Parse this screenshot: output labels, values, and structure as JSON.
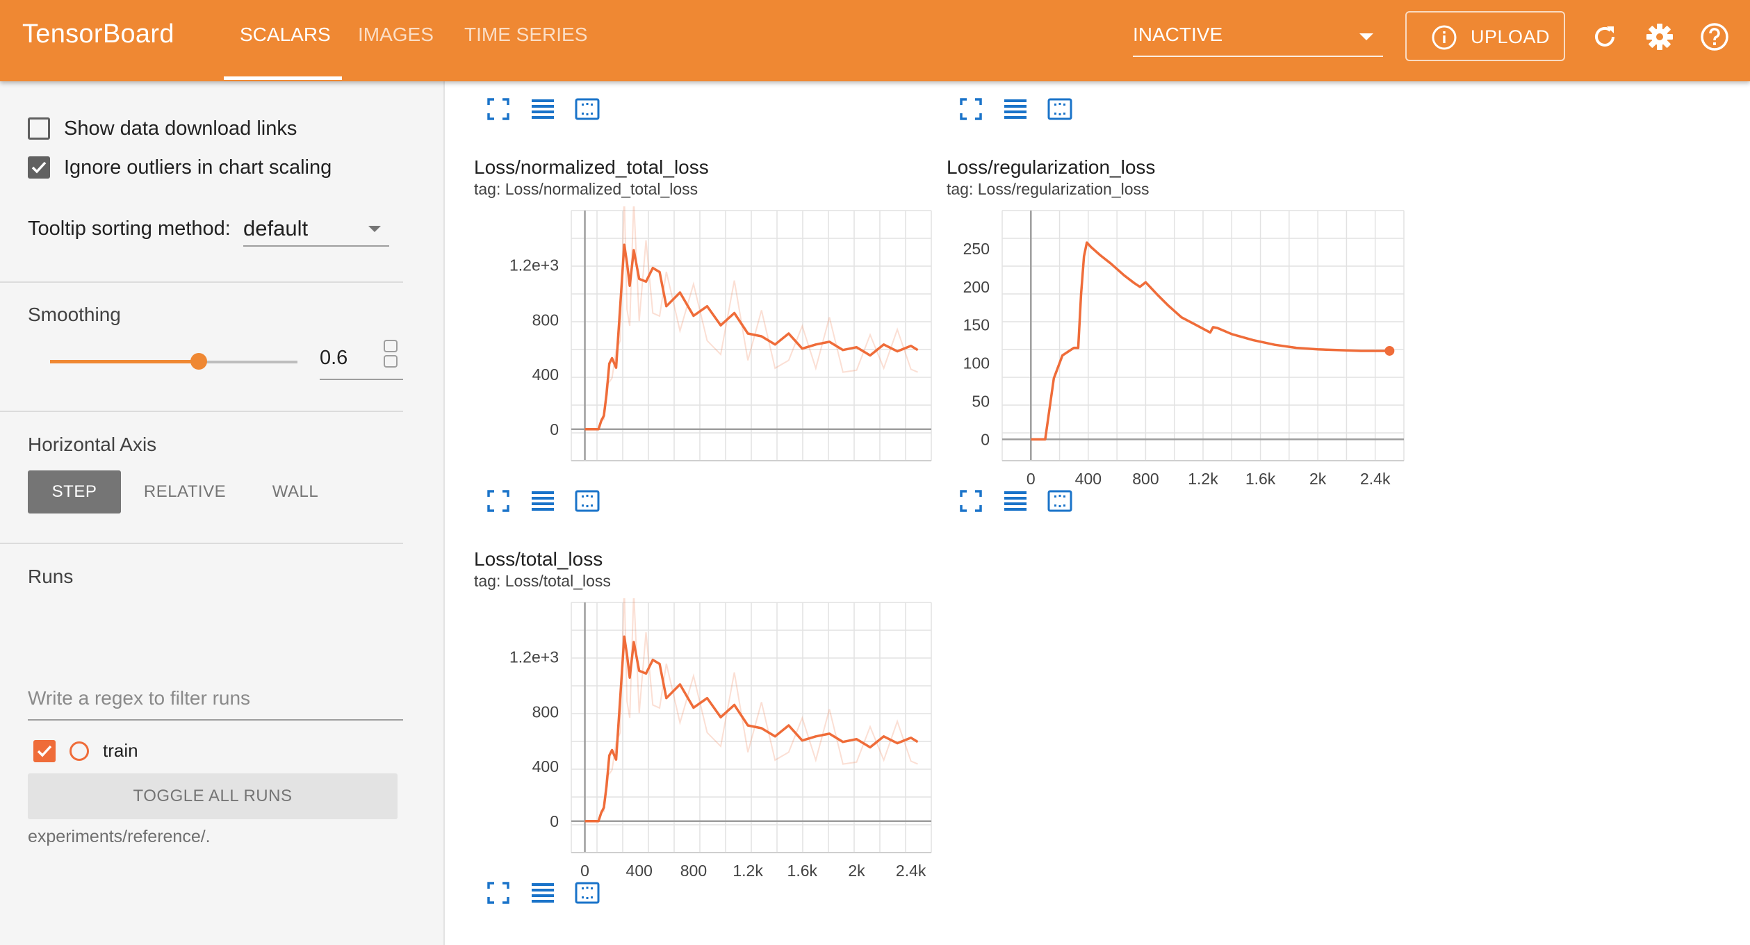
{
  "app": {
    "brand": "TensorBoard",
    "tabs": [
      {
        "label": "SCALARS",
        "active": true
      },
      {
        "label": "IMAGES",
        "active": false
      },
      {
        "label": "TIME SERIES",
        "active": false
      }
    ],
    "run_status": "INACTIVE",
    "upload_label": "UPLOAD",
    "accent_color": "#ef8833",
    "icons": [
      "refresh-icon",
      "settings-gear-icon",
      "help-icon",
      "info-icon"
    ]
  },
  "sidebar": {
    "show_download_links": {
      "label": "Show data download links",
      "checked": false
    },
    "ignore_outliers": {
      "label": "Ignore outliers in chart scaling",
      "checked": true
    },
    "tooltip_sorting": {
      "label": "Tooltip sorting method:",
      "value": "default"
    },
    "smoothing": {
      "label": "Smoothing",
      "value": "0.6",
      "fraction": 0.6
    },
    "horizontal_axis": {
      "label": "Horizontal Axis",
      "options": [
        "STEP",
        "RELATIVE",
        "WALL"
      ],
      "selected": "STEP"
    },
    "runs": {
      "label": "Runs",
      "filter_placeholder": "Write a regex to filter runs",
      "items": [
        {
          "name": "train",
          "checked": true,
          "color": "#ef6c39"
        }
      ],
      "toggle_all_label": "TOGGLE ALL RUNS",
      "logdir": "experiments/reference/."
    }
  },
  "chart_data": [
    {
      "type": "line",
      "title": "Loss/normalized_total_loss",
      "tag": "tag: Loss/normalized_total_loss",
      "xlim": [
        -100,
        2550
      ],
      "ylim": [
        -230,
        1600
      ],
      "yticks": [
        {
          "v": 0,
          "label": "0"
        },
        {
          "v": 400,
          "label": "400"
        },
        {
          "v": 800,
          "label": "800"
        },
        {
          "v": 1200,
          "label": "1.2e+3"
        }
      ],
      "xticks": [],
      "series": [
        {
          "color": "#ef6c39",
          "x": [
            0,
            100,
            120,
            140,
            160,
            180,
            200,
            230,
            260,
            290,
            310,
            330,
            360,
            400,
            450,
            500,
            550,
            600,
            700,
            800,
            900,
            1000,
            1100,
            1200,
            1300,
            1400,
            1500,
            1600,
            1700,
            1800,
            1900,
            2000,
            2100,
            2200,
            2300,
            2400,
            2450
          ],
          "y": [
            0,
            0,
            60,
            100,
            260,
            480,
            520,
            450,
            900,
            1350,
            1220,
            1050,
            1310,
            1100,
            1080,
            1180,
            1150,
            900,
            1000,
            830,
            900,
            760,
            850,
            700,
            680,
            620,
            700,
            590,
            620,
            640,
            580,
            600,
            540,
            620,
            570,
            610,
            580
          ]
        }
      ],
      "grid": true,
      "legend": "none"
    },
    {
      "type": "line",
      "title": "Loss/regularization_loss",
      "tag": "tag: Loss/regularization_loss",
      "xlim": [
        -200,
        2600
      ],
      "ylim": [
        -28,
        300
      ],
      "yticks": [
        {
          "v": 0,
          "label": "0"
        },
        {
          "v": 50,
          "label": "50"
        },
        {
          "v": 100,
          "label": "100"
        },
        {
          "v": 150,
          "label": "150"
        },
        {
          "v": 200,
          "label": "200"
        },
        {
          "v": 250,
          "label": "250"
        }
      ],
      "xticks": [
        {
          "v": 0,
          "label": "0"
        },
        {
          "v": 400,
          "label": "400"
        },
        {
          "v": 800,
          "label": "800"
        },
        {
          "v": 1200,
          "label": "1.2k"
        },
        {
          "v": 1600,
          "label": "1.6k"
        },
        {
          "v": 2000,
          "label": "2k"
        },
        {
          "v": 2400,
          "label": "2.4k"
        }
      ],
      "series": [
        {
          "color": "#ef6c39",
          "x": [
            0,
            100,
            130,
            160,
            190,
            220,
            260,
            300,
            330,
            350,
            370,
            390,
            420,
            480,
            560,
            650,
            720,
            760,
            800,
            880,
            960,
            1050,
            1150,
            1250,
            1270,
            1300,
            1400,
            1550,
            1700,
            1850,
            2000,
            2150,
            2300,
            2500
          ],
          "y": [
            0,
            0,
            40,
            80,
            95,
            110,
            115,
            120,
            120,
            190,
            240,
            258,
            252,
            242,
            230,
            215,
            205,
            200,
            206,
            190,
            175,
            160,
            150,
            140,
            147,
            146,
            138,
            130,
            124,
            120,
            118,
            117,
            116,
            116
          ]
        }
      ],
      "end_marker": true,
      "grid": true,
      "legend": "none"
    },
    {
      "type": "line",
      "title": "Loss/total_loss",
      "tag": "tag: Loss/total_loss",
      "xlim": [
        -100,
        2550
      ],
      "ylim": [
        -230,
        1600
      ],
      "yticks": [
        {
          "v": 0,
          "label": "0"
        },
        {
          "v": 400,
          "label": "400"
        },
        {
          "v": 800,
          "label": "800"
        },
        {
          "v": 1200,
          "label": "1.2e+3"
        }
      ],
      "xticks": [
        {
          "v": 0,
          "label": "0"
        },
        {
          "v": 400,
          "label": "400"
        },
        {
          "v": 800,
          "label": "800"
        },
        {
          "v": 1200,
          "label": "1.2k"
        },
        {
          "v": 1600,
          "label": "1.6k"
        },
        {
          "v": 2000,
          "label": "2k"
        },
        {
          "v": 2400,
          "label": "2.4k"
        }
      ],
      "series": [
        {
          "color": "#ef6c39",
          "x": [
            0,
            100,
            120,
            140,
            160,
            180,
            200,
            230,
            260,
            290,
            310,
            330,
            360,
            400,
            450,
            500,
            550,
            600,
            700,
            800,
            900,
            1000,
            1100,
            1200,
            1300,
            1400,
            1500,
            1600,
            1700,
            1800,
            1900,
            2000,
            2100,
            2200,
            2300,
            2400,
            2450
          ],
          "y": [
            0,
            0,
            60,
            100,
            260,
            480,
            520,
            450,
            900,
            1350,
            1220,
            1050,
            1310,
            1100,
            1080,
            1180,
            1150,
            900,
            1000,
            830,
            900,
            760,
            850,
            700,
            680,
            620,
            700,
            590,
            620,
            640,
            580,
            600,
            540,
            620,
            570,
            610,
            580
          ]
        }
      ],
      "grid": true,
      "legend": "none"
    }
  ]
}
